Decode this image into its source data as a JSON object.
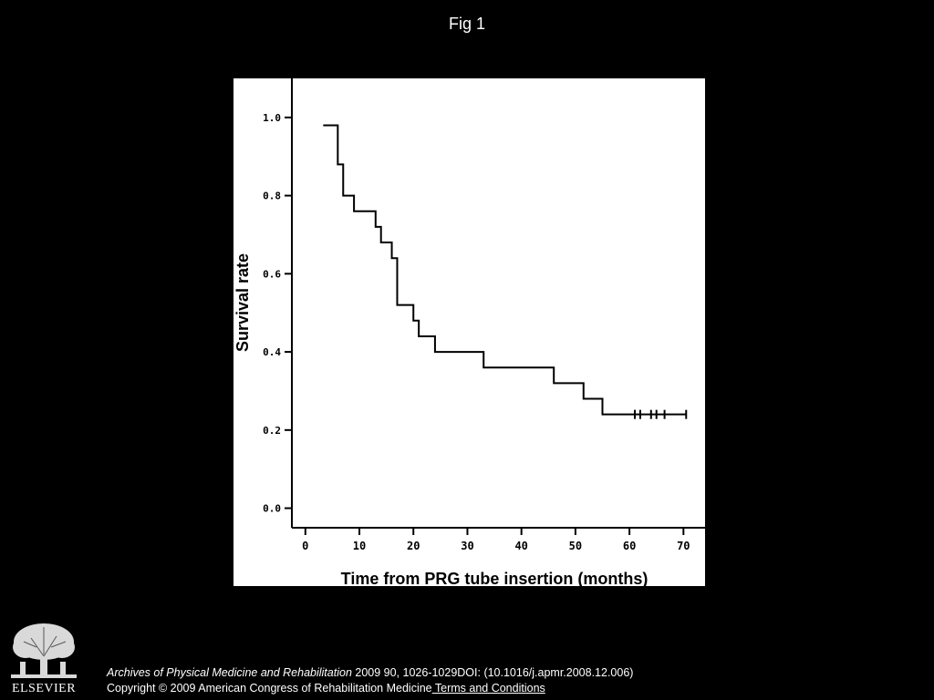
{
  "page": {
    "title": "Fig 1",
    "background_color": "#000000",
    "panel_color": "#ffffff"
  },
  "chart_data": {
    "type": "line",
    "step": true,
    "title": "",
    "xlabel": "Time from PRG tube insertion (months)",
    "ylabel": "Survival rate",
    "xlim": [
      -2.5,
      74
    ],
    "ylim": [
      -0.05,
      1.1
    ],
    "x_ticks": [
      0,
      10,
      20,
      30,
      40,
      50,
      60,
      70
    ],
    "x_tick_labels": [
      "0",
      "10",
      "20",
      "30",
      "40",
      "50",
      "60",
      "70"
    ],
    "y_ticks": [
      0.0,
      0.2,
      0.4,
      0.6,
      0.8,
      1.0
    ],
    "y_tick_labels": [
      "0.0",
      "0.2",
      "0.4",
      "0.6",
      "0.8",
      "1.0"
    ],
    "grid": false,
    "line_color": "#000000",
    "series": [
      {
        "x": [
          3.3,
          6,
          7,
          9,
          13,
          14,
          16,
          17,
          20,
          21,
          24,
          33,
          46,
          51.5,
          55,
          70.5
        ],
        "y": [
          0.98,
          0.88,
          0.8,
          0.76,
          0.72,
          0.68,
          0.64,
          0.52,
          0.48,
          0.44,
          0.4,
          0.36,
          0.32,
          0.28,
          0.24,
          0.24
        ]
      }
    ],
    "censored": {
      "x": [
        61,
        62,
        64,
        65,
        66.5,
        70.5
      ],
      "y": 0.24
    }
  },
  "citation": {
    "journal": "Archives of Physical Medicine and Rehabilitation",
    "details": " 2009 90, 1026-1029DOI: (10.1016/j.apmr.2008.12.006)",
    "copyright": "Copyright © 2009 American Congress of Rehabilitation Medicine",
    "link_label": " Terms and Conditions"
  },
  "logo": {
    "wordmark": "ELSEVIER",
    "icon": "elsevier-tree-icon"
  }
}
